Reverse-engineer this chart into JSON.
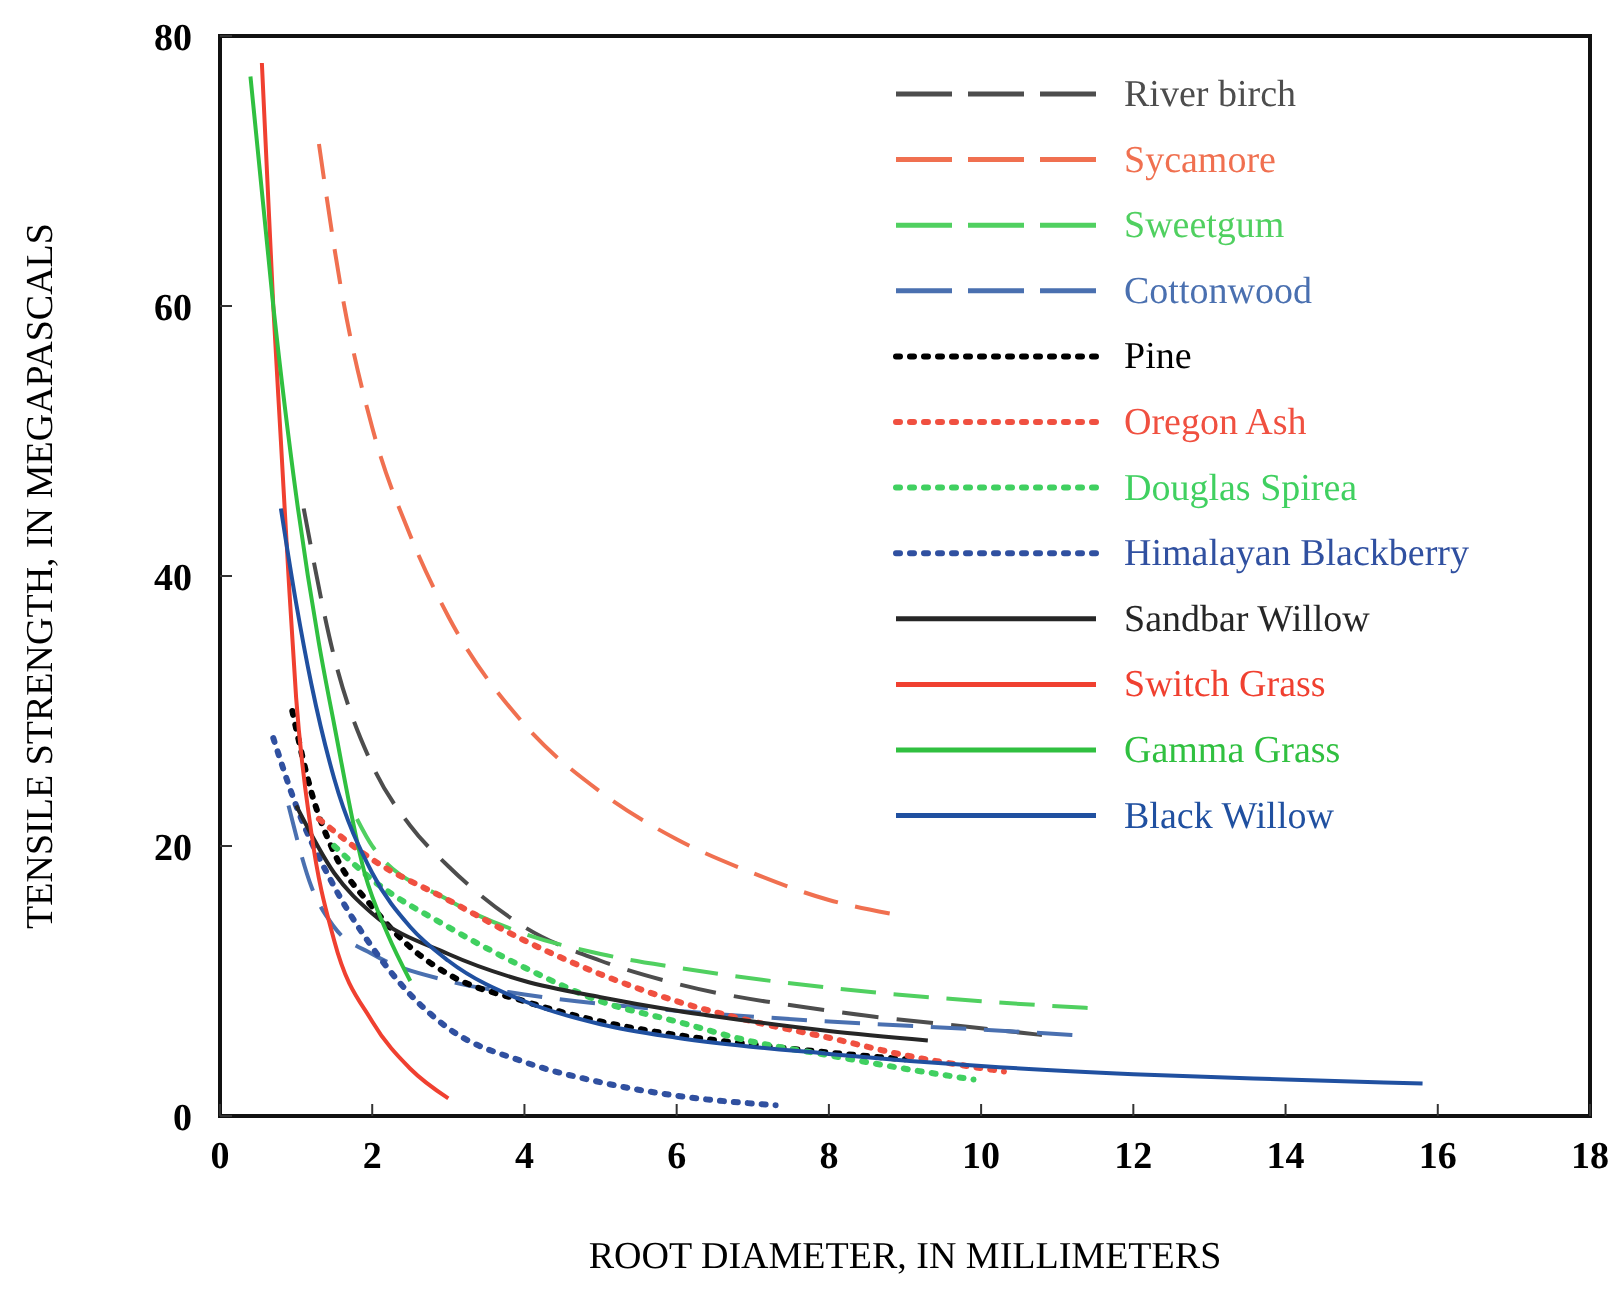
{
  "chart_data": {
    "type": "line",
    "xlabel": "ROOT DIAMETER, IN MILLIMETERS",
    "ylabel": "TENSILE STRENGTH, IN MEGAPASCALS",
    "xlim": [
      0,
      18
    ],
    "xticks": [
      0,
      2,
      4,
      6,
      8,
      10,
      12,
      14,
      16,
      18
    ],
    "ylim": [
      0,
      80
    ],
    "yticks": [
      0,
      20,
      40,
      60,
      80
    ],
    "grid": false,
    "legend": "top right",
    "marker": "none",
    "series": [
      {
        "name": "River birch",
        "color": "#4d4d4d",
        "line_style": "dashed",
        "x": [
          1.1,
          1.5,
          2,
          2.5,
          3,
          4,
          5,
          6,
          8,
          10,
          10.8
        ],
        "values": [
          45,
          34,
          26,
          21.5,
          18.5,
          14,
          11.5,
          9.8,
          7.8,
          6.5,
          6
        ]
      },
      {
        "name": "Sycamore",
        "color": "#f07050",
        "line_style": "dashed",
        "x": [
          1.3,
          1.6,
          2,
          2.5,
          3,
          4,
          5,
          6,
          7,
          8,
          8.8
        ],
        "values": [
          72,
          61,
          51,
          43,
          37,
          29,
          24,
          20.5,
          18,
          16,
          15
        ]
      },
      {
        "name": "Sweetgum",
        "color": "#50d060",
        "line_style": "dashed",
        "x": [
          1.8,
          2,
          3,
          4,
          5,
          6,
          8,
          10,
          11.4
        ],
        "values": [
          22,
          20,
          16,
          13.5,
          12,
          11,
          9.5,
          8.5,
          8
        ]
      },
      {
        "name": "Cottonwood",
        "color": "#4a70b0",
        "line_style": "dashed",
        "x": [
          0.9,
          1.2,
          1.5,
          2,
          3,
          4,
          6,
          8,
          10,
          11.2
        ],
        "values": [
          23,
          17,
          14,
          12,
          10,
          9,
          7.8,
          7,
          6.4,
          6
        ]
      },
      {
        "name": "Pine",
        "color": "#000000",
        "line_style": "dotted",
        "x": [
          0.95,
          1.2,
          1.5,
          2,
          2.5,
          3,
          4,
          5,
          6,
          7,
          8,
          9
        ],
        "values": [
          30,
          24,
          19.5,
          15.5,
          12.5,
          10.5,
          8.5,
          7,
          6,
          5.3,
          4.7,
          4.2
        ]
      },
      {
        "name": "Oregon Ash",
        "color": "#f05040",
        "line_style": "dotted",
        "x": [
          1.3,
          2,
          3,
          4,
          5,
          6,
          7,
          8,
          9,
          10.3
        ],
        "values": [
          22,
          19,
          16,
          13,
          10.5,
          8.5,
          7,
          5.8,
          4.5,
          3.3
        ]
      },
      {
        "name": "Douglas Spirea",
        "color": "#40d060",
        "line_style": "dotted",
        "x": [
          1.5,
          2,
          3,
          4,
          5,
          6,
          7,
          8,
          9,
          9.9
        ],
        "values": [
          20,
          17.5,
          14,
          11,
          8.5,
          7,
          5.5,
          4.5,
          3.5,
          2.7
        ]
      },
      {
        "name": "Himalayan Blackberry",
        "color": "#3050a0",
        "line_style": "dotted",
        "x": [
          0.7,
          1,
          1.5,
          2,
          2.5,
          3,
          4,
          5,
          6,
          7.3
        ],
        "values": [
          28,
          23,
          17,
          12.5,
          9,
          6.5,
          4,
          2.5,
          1.5,
          0.8
        ]
      },
      {
        "name": "Sandbar Willow",
        "color": "#262626",
        "line_style": "solid",
        "x": [
          1,
          1.5,
          2,
          3,
          4,
          5,
          6,
          7,
          8,
          9.3
        ],
        "values": [
          23,
          18,
          15,
          12,
          10,
          8.8,
          7.8,
          7,
          6.3,
          5.6
        ]
      },
      {
        "name": "Switch Grass",
        "color": "#f04030",
        "line_style": "solid",
        "x": [
          0.55,
          0.7,
          0.8,
          0.9,
          1,
          1.2,
          1.5,
          2,
          2.5,
          3
        ],
        "values": [
          78,
          60,
          50,
          40,
          31,
          21,
          13,
          7,
          3.5,
          1.3
        ]
      },
      {
        "name": "Gamma Grass",
        "color": "#30c040",
        "line_style": "solid",
        "x": [
          0.4,
          0.7,
          1,
          1.3,
          1.5,
          1.9,
          2.2,
          2.5
        ],
        "values": [
          77,
          60,
          46,
          35,
          29,
          18,
          13.5,
          10
        ]
      },
      {
        "name": "Black Willow",
        "color": "#2050a0",
        "line_style": "solid",
        "x": [
          0.8,
          1,
          1.2,
          1.5,
          2,
          2.5,
          3,
          4,
          5,
          6,
          8,
          10,
          12,
          14,
          15.8
        ],
        "values": [
          45,
          38,
          32,
          25,
          18,
          14,
          11.5,
          8.5,
          6.8,
          5.8,
          4.6,
          3.7,
          3.1,
          2.7,
          2.4
        ]
      }
    ]
  }
}
